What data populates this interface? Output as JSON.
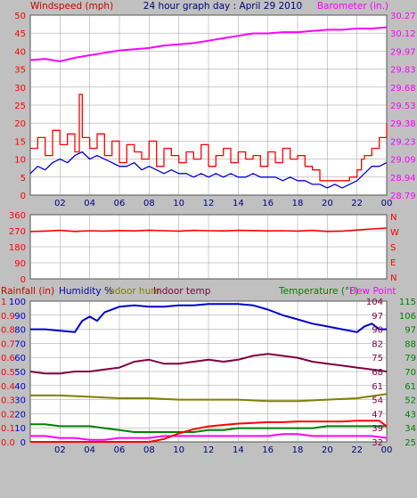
{
  "header": {
    "left": "Windspeed (mph)",
    "center": "24 hour graph day : April 29 2010",
    "right": "Barometer (in.)"
  },
  "labels": {
    "rainfall": "Rainfall (in)",
    "humidity": "Humidity %",
    "indoor_hum": "Indoor hum",
    "indoor_temp": "Indoor temp",
    "temperature": "Temperature (°F)",
    "dew_point": "Dew Point"
  },
  "direction_letters": [
    "N",
    "W",
    "S",
    "E",
    "N"
  ],
  "colors": {
    "background": "#c0c0c0",
    "plot": "#ffffff",
    "grid": "#9a9a9a",
    "wind": "#ff0000",
    "gust": "#ff0000",
    "windspeed_avg": "#0000cc",
    "barometer": "#ff00ff",
    "direction": "#ff0000",
    "humidity": "#0000cc",
    "indoor_hum": "#808000",
    "indoor_temp": "#800040",
    "rainfall": "#ff0000",
    "temperature": "#008000",
    "dew_point": "#ff00ff",
    "blue_text": "#000080"
  },
  "chart_data": [
    {
      "type": "line",
      "x_ticks": [
        "02",
        "04",
        "06",
        "08",
        "10",
        "12",
        "14",
        "16",
        "18",
        "20",
        "22",
        "00"
      ],
      "x_range_hours": [
        0,
        24
      ],
      "y_left_ticks": [
        "50",
        "45",
        "40",
        "35",
        "30",
        "25",
        "20",
        "15",
        "10",
        "5",
        "0"
      ],
      "y_left_range": [
        0,
        50
      ],
      "y_right_ticks": [
        "30.27",
        "30.12",
        "29.97",
        "29.83",
        "29.68",
        "29.53",
        "29.38",
        "29.23",
        "29.09",
        "28.94",
        "28.79"
      ],
      "y_right_range": [
        28.79,
        30.27
      ],
      "grid": true,
      "series": [
        {
          "name": "Windspeed (mph)",
          "style": "step",
          "x": [
            0.0,
            0.5,
            1.0,
            1.5,
            2.0,
            2.5,
            3.0,
            3.3,
            3.5,
            4.0,
            4.5,
            5.0,
            5.5,
            6.0,
            6.5,
            7.0,
            7.5,
            8.0,
            8.5,
            9.0,
            9.5,
            10.0,
            10.5,
            11.0,
            11.5,
            12.0,
            12.5,
            13.0,
            13.5,
            14.0,
            14.5,
            15.0,
            15.5,
            16.0,
            16.5,
            17.0,
            17.5,
            18.0,
            18.5,
            19.0,
            19.5,
            20.0,
            20.5,
            21.0,
            21.5,
            22.0,
            22.3,
            22.5,
            23.0,
            23.5,
            24.0
          ],
          "values": [
            13,
            16,
            11,
            18,
            14,
            17,
            12,
            28,
            16,
            13,
            17,
            11,
            15,
            9,
            14,
            12,
            10,
            15,
            8,
            13,
            11,
            9,
            12,
            10,
            14,
            8,
            11,
            13,
            9,
            12,
            10,
            11,
            8,
            12,
            9,
            13,
            10,
            11,
            8,
            7,
            4,
            4,
            4,
            4,
            5,
            7,
            10,
            11,
            13,
            16,
            20
          ]
        },
        {
          "name": "Windspeed average",
          "x": [
            0.0,
            0.5,
            1.0,
            1.5,
            2.0,
            2.5,
            3.0,
            3.5,
            4.0,
            4.5,
            5.0,
            5.5,
            6.0,
            6.5,
            7.0,
            7.5,
            8.0,
            8.5,
            9.0,
            9.5,
            10.0,
            10.5,
            11.0,
            11.5,
            12.0,
            12.5,
            13.0,
            13.5,
            14.0,
            14.5,
            15.0,
            15.5,
            16.0,
            16.5,
            17.0,
            17.5,
            18.0,
            18.5,
            19.0,
            19.5,
            20.0,
            20.5,
            21.0,
            21.5,
            22.0,
            22.5,
            23.0,
            23.5,
            24.0
          ],
          "values": [
            6,
            8,
            7,
            9,
            10,
            9,
            11,
            12,
            10,
            11,
            10,
            9,
            8,
            8,
            9,
            7,
            8,
            7,
            6,
            7,
            6,
            6,
            5,
            6,
            5,
            6,
            5,
            6,
            5,
            5,
            6,
            5,
            5,
            5,
            4,
            5,
            4,
            4,
            3,
            3,
            2,
            3,
            2,
            3,
            4,
            6,
            8,
            8,
            9
          ]
        },
        {
          "name": "Barometer (in.)",
          "axis": "right",
          "x": [
            0,
            1,
            2,
            3,
            4,
            5,
            6,
            7,
            8,
            9,
            10,
            11,
            12,
            13,
            14,
            15,
            16,
            17,
            18,
            19,
            20,
            21,
            22,
            23,
            24
          ],
          "values": [
            29.9,
            29.91,
            29.89,
            29.92,
            29.94,
            29.96,
            29.98,
            29.99,
            30.0,
            30.02,
            30.03,
            30.04,
            30.06,
            30.08,
            30.1,
            30.12,
            30.12,
            30.13,
            30.13,
            30.14,
            30.15,
            30.15,
            30.16,
            30.16,
            30.17
          ]
        }
      ]
    },
    {
      "type": "line",
      "x_range_hours": [
        0,
        24
      ],
      "y_ticks": [
        "360",
        "270",
        "180",
        "90",
        "0"
      ],
      "y_range": [
        0,
        360
      ],
      "grid": true,
      "series": [
        {
          "name": "Wind direction",
          "x": [
            0,
            1,
            2,
            3,
            4,
            5,
            6,
            7,
            8,
            9,
            10,
            11,
            12,
            13,
            14,
            15,
            16,
            17,
            18,
            19,
            20,
            21,
            22,
            23,
            24
          ],
          "values": [
            265,
            268,
            272,
            266,
            270,
            268,
            271,
            269,
            273,
            270,
            268,
            272,
            270,
            269,
            272,
            271,
            269,
            270,
            268,
            272,
            266,
            268,
            274,
            280,
            285
          ]
        }
      ]
    },
    {
      "type": "line",
      "x_ticks": [
        "02",
        "04",
        "06",
        "08",
        "10",
        "12",
        "14",
        "16",
        "18",
        "20",
        "22",
        "00"
      ],
      "x_range_hours": [
        0,
        24
      ],
      "y_rain_ticks": [
        "1",
        "0.9",
        "0.8",
        "0.7",
        "0.6",
        "0.5",
        "0.4",
        "0.3",
        "0.2",
        "0.1",
        "0.0"
      ],
      "y_rain_range": [
        0,
        1
      ],
      "y_humidity_ticks": [
        "100",
        "90",
        "80",
        "70",
        "60",
        "50",
        "40",
        "30",
        "20",
        "10",
        "0"
      ],
      "y_humidity_range": [
        0,
        100
      ],
      "y_indoor_ticks": [
        "1.2",
        "1.1",
        "0.9",
        "0.8",
        "0.6",
        "0.5",
        "0.4",
        "0.2",
        "0.1",
        "0.0"
      ],
      "y_temp_ticks_a": [
        "104",
        "97",
        "90",
        "82",
        "75",
        "68",
        "61",
        "54",
        "47",
        "39",
        "32"
      ],
      "y_temp_ticks_b": [
        "115",
        "106",
        "97",
        "88",
        "79",
        "70",
        "61",
        "52",
        "43",
        "34",
        "25"
      ],
      "y_temp_range": [
        32,
        104
      ],
      "grid": true,
      "series": [
        {
          "name": "Humidity %",
          "x": [
            0,
            1,
            2,
            3,
            3.5,
            4,
            4.5,
            5,
            6,
            7,
            8,
            9,
            10,
            11,
            12,
            13,
            14,
            15,
            16,
            17,
            18,
            19,
            20,
            21,
            22,
            22.5,
            23,
            23.5,
            24
          ],
          "values": [
            80,
            80,
            79,
            78,
            86,
            89,
            86,
            92,
            96,
            97,
            96,
            96,
            97,
            97,
            98,
            98,
            98,
            97,
            94,
            90,
            87,
            84,
            82,
            80,
            78,
            82,
            84,
            80,
            80
          ]
        },
        {
          "name": "Indoor hum",
          "x": [
            0,
            2,
            4,
            6,
            8,
            10,
            12,
            14,
            16,
            18,
            20,
            22,
            24
          ],
          "values": [
            33,
            33,
            32,
            31,
            31,
            30,
            30,
            30,
            29,
            29,
            30,
            31,
            34
          ]
        },
        {
          "name": "Indoor temp",
          "x": [
            0,
            1,
            2,
            3,
            4,
            5,
            6,
            7,
            8,
            9,
            10,
            11,
            12,
            13,
            14,
            15,
            16,
            17,
            18,
            19,
            20,
            21,
            22,
            23,
            24
          ],
          "values": [
            68,
            67,
            67,
            68,
            68,
            69,
            70,
            73,
            74,
            72,
            72,
            73,
            74,
            73,
            74,
            76,
            77,
            76,
            75,
            73,
            72,
            71,
            70,
            69,
            68
          ]
        },
        {
          "name": "Rainfall (in)",
          "x": [
            0,
            4,
            8,
            9,
            10,
            11,
            12,
            13,
            14,
            15,
            16,
            17,
            18,
            19,
            20,
            21,
            22,
            23,
            23.5,
            24
          ],
          "values": [
            0.0,
            0.0,
            0.0,
            0.02,
            0.06,
            0.09,
            0.11,
            0.12,
            0.13,
            0.135,
            0.14,
            0.14,
            0.145,
            0.145,
            0.145,
            0.145,
            0.15,
            0.15,
            0.15,
            0.11
          ]
        },
        {
          "name": "Temperature (°F)",
          "x": [
            0,
            1,
            2,
            3,
            4,
            5,
            6,
            7,
            8,
            9,
            10,
            11,
            12,
            13,
            14,
            15,
            16,
            17,
            18,
            19,
            20,
            21,
            22,
            23,
            24
          ],
          "values": [
            41,
            41,
            40,
            40,
            40,
            39,
            38,
            37,
            37,
            37,
            37,
            37,
            38,
            38,
            39,
            39,
            39,
            39,
            39,
            39,
            40,
            40,
            40,
            40,
            40
          ]
        },
        {
          "name": "Dew Point",
          "x": [
            0,
            1,
            2,
            3,
            4,
            5,
            6,
            7,
            8,
            9,
            10,
            11,
            12,
            13,
            14,
            15,
            16,
            17,
            18,
            19,
            20,
            21,
            22,
            23,
            24
          ],
          "values": [
            35,
            35,
            34,
            34,
            33,
            33,
            34,
            34,
            34,
            35,
            35,
            35,
            35,
            35,
            35,
            35,
            35,
            36,
            36,
            35,
            35,
            35,
            35,
            35,
            34
          ]
        }
      ]
    }
  ]
}
